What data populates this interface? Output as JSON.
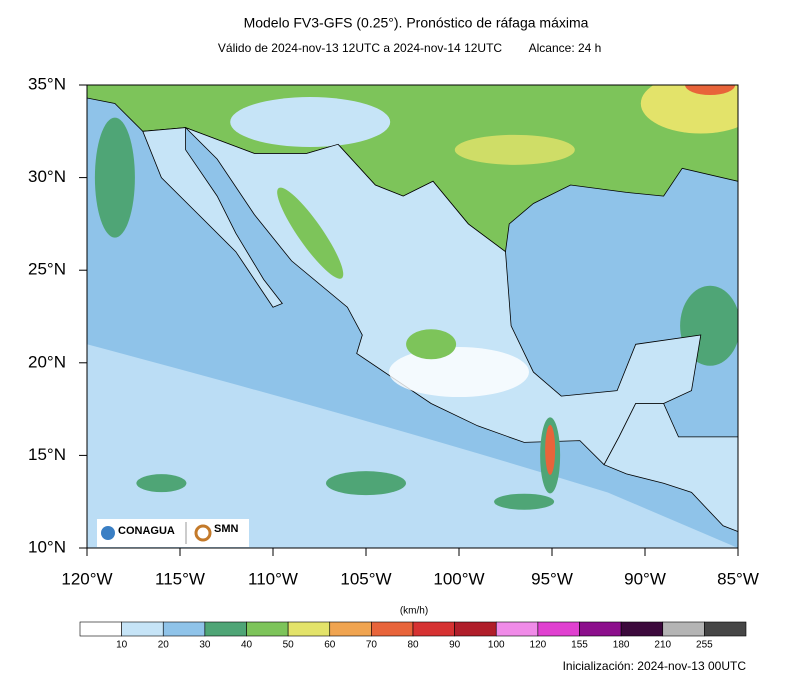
{
  "header": {
    "title": "Modelo FV3-GFS (0.25°). Pronóstico de ráfaga máxima",
    "valid": "Válido de 2024-nov-13 12UTC a 2024-nov-14 12UTC",
    "range": "Alcance: 24 h"
  },
  "map": {
    "lat_labels": [
      "35°N",
      "30°N",
      "25°N",
      "20°N",
      "15°N",
      "10°N"
    ],
    "lon_labels": [
      "120°W",
      "115°W",
      "110°W",
      "105°W",
      "100°W",
      "95°W",
      "90°W",
      "85°W"
    ],
    "logos": [
      "CONAGUA",
      "SMN"
    ]
  },
  "colorbar": {
    "unit": "(km/h)",
    "colors": [
      "#ffffff",
      "#c6e4f7",
      "#8fc3e9",
      "#4fa576",
      "#7dc45a",
      "#e3e36a",
      "#f0a450",
      "#e8643a",
      "#d63232",
      "#b01e2a",
      "#f08be8",
      "#e040d0",
      "#8c0f8c",
      "#3c0a3c",
      "#b4b4b4",
      "#464646"
    ],
    "levels": [
      "10",
      "20",
      "30",
      "40",
      "50",
      "60",
      "70",
      "80",
      "90",
      "100",
      "120",
      "155",
      "180",
      "210",
      "255"
    ]
  },
  "footer": "Inicialización: 2024-nov-13 00UTC"
}
